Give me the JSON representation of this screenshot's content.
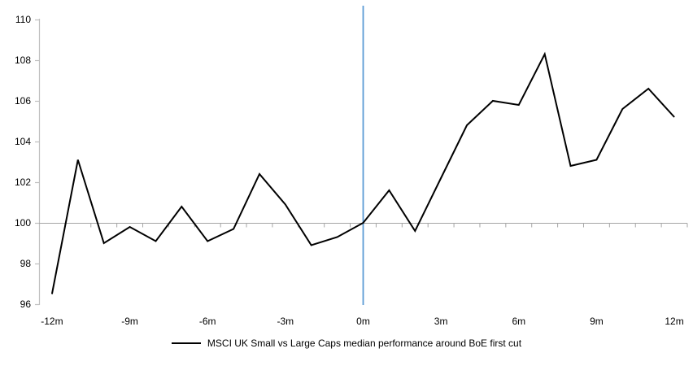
{
  "chart_data": {
    "type": "line",
    "title": "",
    "xlabel": "",
    "ylabel": "",
    "grid": "off",
    "legend_position": "bottom",
    "ylim": [
      96,
      110
    ],
    "y_ticks": [
      96,
      98,
      100,
      102,
      104,
      106,
      108,
      110
    ],
    "x_range_months": [
      -12,
      12
    ],
    "x_tick_labels": [
      {
        "month": -12,
        "label": "-12m"
      },
      {
        "month": -9,
        "label": "-9m"
      },
      {
        "month": -6,
        "label": "-6m"
      },
      {
        "month": -3,
        "label": "-3m"
      },
      {
        "month": 0,
        "label": "0m"
      },
      {
        "month": 3,
        "label": "3m"
      },
      {
        "month": 6,
        "label": "6m"
      },
      {
        "month": 9,
        "label": "9m"
      },
      {
        "month": 12,
        "label": "12m"
      }
    ],
    "baseline_value": 100,
    "event_line_month": 0,
    "series": [
      {
        "name": "MSCI UK Small vs Large Caps median performance around BoE first cut",
        "color": "#000000",
        "x": [
          -12,
          -11,
          -10,
          -9,
          -8,
          -7,
          -6,
          -5,
          -4,
          -3,
          -2,
          -1,
          0,
          1,
          2,
          3,
          4,
          5,
          6,
          7,
          8,
          9,
          10,
          11,
          12
        ],
        "values": [
          96.5,
          103.1,
          99.0,
          99.8,
          99.1,
          100.8,
          99.1,
          99.7,
          102.4,
          100.9,
          98.9,
          99.3,
          100.0,
          101.6,
          99.6,
          102.2,
          104.8,
          106.0,
          105.8,
          108.3,
          102.8,
          103.1,
          105.6,
          106.6,
          105.2
        ]
      }
    ],
    "colors": {
      "series_line": "#000000",
      "event_line": "#5B9BD5",
      "baseline_line": "#A6A6A6",
      "axis_line": "#BFBFBF",
      "tick_text": "#000000"
    }
  }
}
